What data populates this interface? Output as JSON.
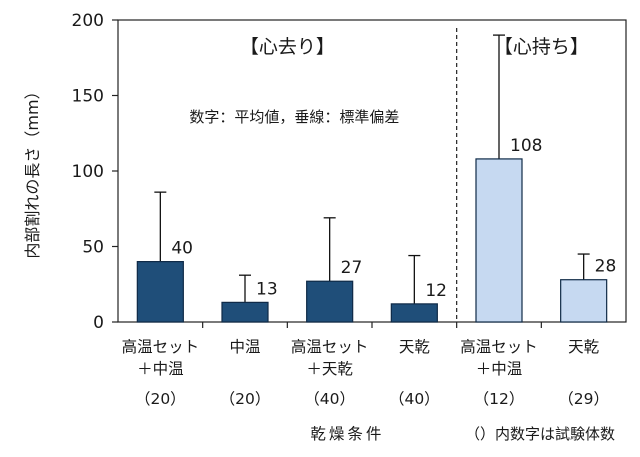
{
  "chart_data": {
    "type": "bar",
    "ylabel": "内部割れの長さ（mm）",
    "xlabel": "乾燥条件",
    "ylim": [
      0,
      200
    ],
    "yticks": [
      0,
      50,
      100,
      150,
      200
    ],
    "note": "数字：平均値，垂線：標準偏差",
    "footnote": "（）内数字は試験体数",
    "sections": [
      {
        "label": "【心去り】",
        "from": 0,
        "to": 3
      },
      {
        "label": "【心持ち】",
        "from": 4,
        "to": 5
      }
    ],
    "categories": [
      {
        "lines": [
          "高温セット",
          "＋中温"
        ],
        "n": "（20）",
        "value": 40,
        "sd": 46,
        "data_label": "40",
        "color": "#1f4e79"
      },
      {
        "lines": [
          "中温"
        ],
        "n": "（20）",
        "value": 13,
        "sd": 18,
        "data_label": "13",
        "color": "#1f4e79"
      },
      {
        "lines": [
          "高温セット",
          "＋天乾"
        ],
        "n": "（40）",
        "value": 27,
        "sd": 42,
        "data_label": "27",
        "color": "#1f4e79"
      },
      {
        "lines": [
          "天乾"
        ],
        "n": "（40）",
        "value": 12,
        "sd": 32,
        "data_label": "12",
        "color": "#1f4e79"
      },
      {
        "lines": [
          "高温セット",
          "＋中温"
        ],
        "n": "（12）",
        "value": 108,
        "sd": 82,
        "data_label": "108",
        "color": "#c6d9f1"
      },
      {
        "lines": [
          "天乾"
        ],
        "n": "（29）",
        "value": 28,
        "sd": 17,
        "data_label": "28",
        "color": "#c6d9f1"
      }
    ]
  }
}
